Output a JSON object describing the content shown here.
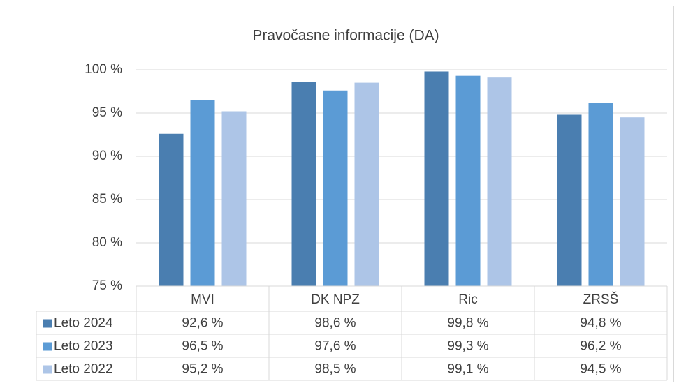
{
  "chart_data": {
    "type": "bar",
    "title": "Pravočasne informacije (DA)",
    "categories": [
      "MVI",
      "DK NPZ",
      "Ric",
      "ZRSŠ"
    ],
    "series": [
      {
        "name": "Leto 2024",
        "color": "#4a7eb0",
        "values": [
          92.6,
          98.6,
          99.8,
          94.8
        ],
        "value_labels": [
          "92,6 %",
          "98,6 %",
          "99,8 %",
          "94,8 %"
        ]
      },
      {
        "name": "Leto 2023",
        "color": "#5b9bd5",
        "values": [
          96.5,
          97.6,
          99.3,
          96.2
        ],
        "value_labels": [
          "96,5 %",
          "97,6 %",
          "99,3 %",
          "96,2 %"
        ]
      },
      {
        "name": "Leto 2022",
        "color": "#adc5e7",
        "values": [
          95.2,
          98.5,
          99.1,
          94.5
        ],
        "value_labels": [
          "95,2 %",
          "98,5 %",
          "99,1 %",
          "94,5 %"
        ]
      }
    ],
    "ylim": [
      75,
      100
    ],
    "yticks": [
      {
        "value": 75,
        "label": "75 %"
      },
      {
        "value": 80,
        "label": "80 %"
      },
      {
        "value": 85,
        "label": "85 %"
      },
      {
        "value": 90,
        "label": "90 %"
      },
      {
        "value": 95,
        "label": "95 %"
      },
      {
        "value": 100,
        "label": "100 %"
      }
    ],
    "grid": true
  }
}
